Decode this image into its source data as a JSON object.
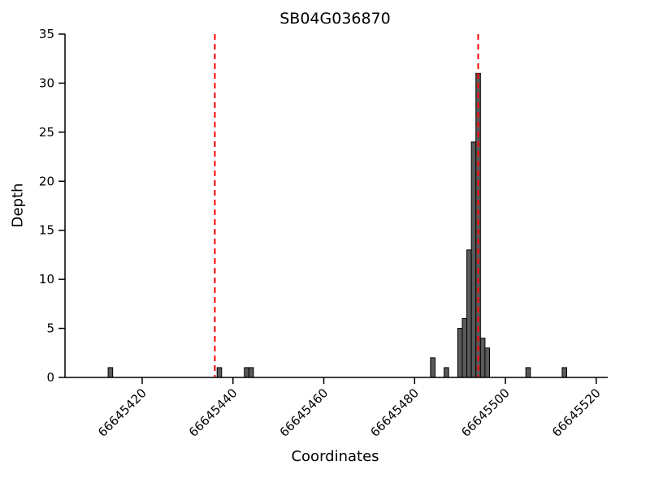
{
  "chart_data": {
    "type": "bar",
    "title": "SB04G036870",
    "xlabel": "Coordinates",
    "ylabel": "Depth",
    "xlim": [
      66645403,
      66645522
    ],
    "ylim": [
      0,
      35
    ],
    "yticks": [
      0,
      5,
      10,
      15,
      20,
      25,
      30,
      35
    ],
    "xticks": [
      66645420,
      66645440,
      66645460,
      66645480,
      66645500,
      66645520
    ],
    "grid": false,
    "legend": null,
    "bar_color": "#5a5a5a",
    "bar_edge_color": "#000000",
    "vline_color": "#ff0000",
    "axis_color": "#000000",
    "bars": [
      {
        "x": 66645413,
        "h": 1
      },
      {
        "x": 66645437,
        "h": 1
      },
      {
        "x": 66645443,
        "h": 1
      },
      {
        "x": 66645444,
        "h": 1
      },
      {
        "x": 66645484,
        "h": 2
      },
      {
        "x": 66645487,
        "h": 1
      },
      {
        "x": 66645490,
        "h": 5
      },
      {
        "x": 66645491,
        "h": 6
      },
      {
        "x": 66645492,
        "h": 13
      },
      {
        "x": 66645493,
        "h": 24
      },
      {
        "x": 66645494,
        "h": 31
      },
      {
        "x": 66645495,
        "h": 4
      },
      {
        "x": 66645496,
        "h": 3
      },
      {
        "x": 66645505,
        "h": 1
      },
      {
        "x": 66645513,
        "h": 1
      }
    ],
    "vlines": [
      66645436,
      66645494
    ]
  }
}
